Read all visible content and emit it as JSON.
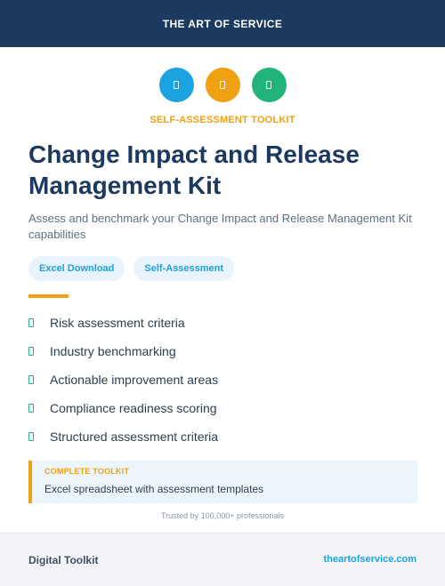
{
  "header": {
    "brand": "THE ART OF SERVICE"
  },
  "colors": {
    "navy": "#1c3a5f",
    "blue": "#1aa3e0",
    "orange": "#f0a013",
    "green": "#22b37a"
  },
  "icons": [
    {
      "name": "document-icon",
      "color": "#1aa3e0"
    },
    {
      "name": "document-icon",
      "color": "#f0a013"
    },
    {
      "name": "document-icon",
      "color": "#22b37a"
    }
  ],
  "kicker": "SELF-ASSESSMENT TOOLKIT",
  "title": "Change Impact and Release Management Kit",
  "subtitle": "Assess and benchmark your Change Impact and Release Management Kit capabilities",
  "tags": [
    "Excel Download",
    "Self-Assessment"
  ],
  "features": [
    "Risk assessment criteria",
    "Industry benchmarking",
    "Actionable improvement areas",
    "Compliance readiness scoring",
    "Structured assessment criteria"
  ],
  "callout": {
    "label": "COMPLETE TOOLKIT",
    "text": "Excel spreadsheet with assessment templates"
  },
  "trust": "Trusted by 100,000+ professionals",
  "footer": {
    "left": "Digital Toolkit",
    "right": "theartofservice.com"
  }
}
